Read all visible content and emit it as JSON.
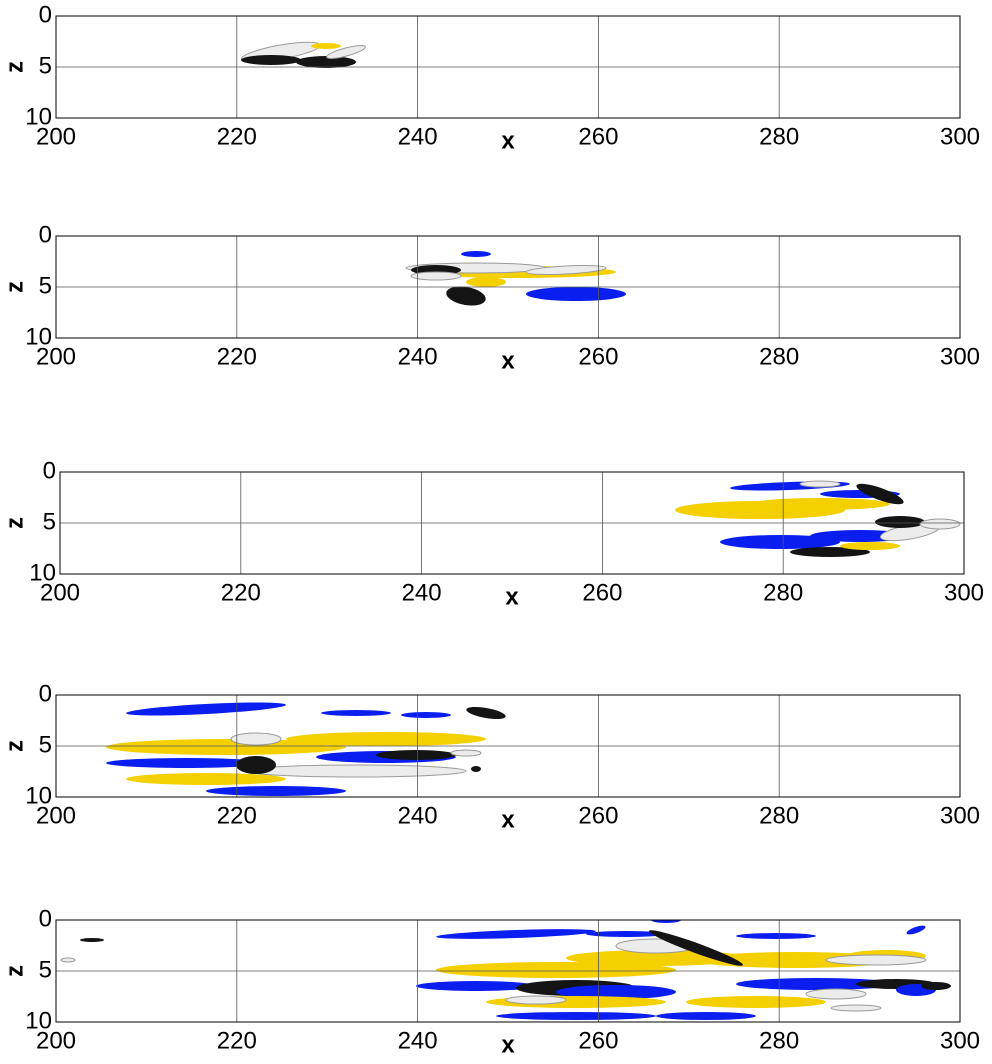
{
  "chart_data": [
    {
      "type": "isosurface",
      "xlabel": "x",
      "ylabel": "z",
      "xlim": [
        200,
        300
      ],
      "ylim": [
        10,
        0
      ],
      "xticks": [
        200,
        220,
        240,
        260,
        280,
        300
      ],
      "yticks": [
        0,
        5,
        10
      ],
      "grid": true
    },
    {
      "type": "isosurface",
      "xlabel": "x",
      "ylabel": "z",
      "xlim": [
        200,
        300
      ],
      "ylim": [
        10,
        0
      ],
      "xticks": [
        200,
        220,
        240,
        260,
        280,
        300
      ],
      "yticks": [
        0,
        5,
        10
      ],
      "grid": true
    },
    {
      "type": "isosurface",
      "xlabel": "x",
      "ylabel": "z",
      "xlim": [
        200,
        300
      ],
      "ylim": [
        10,
        0
      ],
      "xticks": [
        200,
        220,
        240,
        260,
        280,
        300
      ],
      "yticks": [
        0,
        5,
        10
      ],
      "grid": true
    },
    {
      "type": "isosurface",
      "xlabel": "x",
      "ylabel": "z",
      "xlim": [
        200,
        300
      ],
      "ylim": [
        10,
        0
      ],
      "xticks": [
        200,
        220,
        240,
        260,
        280,
        300
      ],
      "yticks": [
        0,
        5,
        10
      ],
      "grid": true
    },
    {
      "type": "isosurface",
      "xlabel": "x",
      "ylabel": "z",
      "xlim": [
        200,
        300
      ],
      "ylim": [
        10,
        0
      ],
      "xticks": [
        200,
        220,
        240,
        260,
        280,
        300
      ],
      "yticks": [
        0,
        5,
        10
      ],
      "grid": true
    }
  ]
}
